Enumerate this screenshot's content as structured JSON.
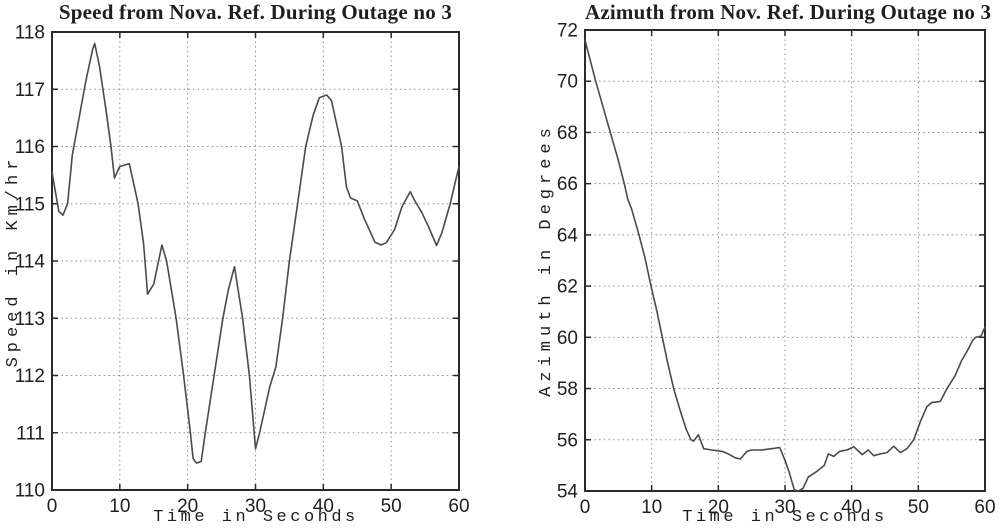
{
  "figure": {
    "background": "#ffffff"
  },
  "colors": {
    "line": "#4a4a4a",
    "grid": "#8e8e8e",
    "border": "#2a2a2a",
    "text": "#1f1f1f"
  },
  "chart_data": [
    {
      "type": "line",
      "title": "Speed from Nova. Ref. During Outage no 3",
      "xlabel": "Time in Seconds",
      "ylabel": "Speed in Km/hr",
      "xlim": [
        0,
        60
      ],
      "ylim": [
        110,
        118
      ],
      "xticks": [
        0,
        10,
        20,
        30,
        40,
        50,
        60
      ],
      "yticks": [
        110,
        111,
        112,
        113,
        114,
        115,
        116,
        117,
        118
      ],
      "grid": true,
      "legend": false,
      "x": [
        0,
        1,
        1.6,
        2.3,
        3,
        4,
        5,
        6,
        6.3,
        7,
        8,
        8.7,
        9.2,
        10,
        11.4,
        12.7,
        13.5,
        14.1,
        15,
        16.2,
        16.9,
        18.3,
        19.4,
        20.4,
        20.8,
        21.3,
        22,
        22.6,
        23.9,
        25.2,
        26,
        26.9,
        28.1,
        29.1,
        30,
        30.6,
        32.1,
        33,
        34,
        35,
        36.2,
        37.4,
        38.5,
        39.4,
        40.5,
        41.2,
        42.7,
        43.4,
        44,
        45,
        46,
        47.6,
        48.5,
        49.3,
        50.5,
        51.6,
        52.8,
        53.5,
        54.5,
        55.5,
        56.7,
        57.5,
        58.7,
        59.4,
        60
      ],
      "y": [
        115.55,
        114.87,
        114.8,
        115.0,
        115.85,
        116.5,
        117.15,
        117.7,
        117.8,
        117.4,
        116.6,
        116.0,
        115.45,
        115.65,
        115.7,
        115.0,
        114.3,
        113.42,
        113.6,
        114.28,
        114.0,
        113.0,
        112.0,
        111.0,
        110.55,
        110.47,
        110.5,
        111.0,
        112.0,
        113.0,
        113.5,
        113.9,
        113.0,
        112.0,
        110.72,
        111.0,
        111.8,
        112.15,
        113.0,
        114.0,
        115.0,
        116.0,
        116.55,
        116.85,
        116.9,
        116.8,
        116.0,
        115.3,
        115.1,
        115.05,
        114.75,
        114.33,
        114.28,
        114.32,
        114.55,
        114.95,
        115.21,
        115.05,
        114.85,
        114.6,
        114.27,
        114.5,
        115.0,
        115.35,
        115.65
      ]
    },
    {
      "type": "line",
      "title": "Azimuth from Nov. Ref. During Outage no 3",
      "xlabel": "Time in Seconds",
      "ylabel": "Azimuth in Degrees",
      "xlim": [
        0,
        60
      ],
      "ylim": [
        54,
        72
      ],
      "xticks": [
        0,
        10,
        20,
        30,
        40,
        50,
        60
      ],
      "yticks": [
        54,
        56,
        58,
        60,
        62,
        64,
        66,
        68,
        70,
        72
      ],
      "grid": true,
      "legend": false,
      "x": [
        0,
        1,
        1.6,
        2.7,
        3.8,
        4.9,
        5.9,
        6.4,
        7,
        8.1,
        9,
        9.9,
        10.8,
        11.6,
        12.4,
        13.3,
        14.2,
        15.2,
        15.9,
        16.3,
        17,
        17.8,
        19,
        20.5,
        21.5,
        22.5,
        23.3,
        24.3,
        25,
        26.5,
        28,
        29.2,
        30,
        30.6,
        31.4,
        32,
        32.7,
        33.5,
        34.7,
        35.9,
        36.5,
        37.3,
        38.2,
        39.3,
        40.3,
        41.6,
        42.5,
        43.3,
        44.3,
        45.3,
        46.3,
        47.3,
        48.3,
        49.3,
        50.3,
        51.3,
        52,
        53.3,
        54.3,
        55.5,
        56.5,
        57.3,
        58.2,
        58.6,
        59.4,
        60
      ],
      "y": [
        71.6,
        70.6,
        70.0,
        69.0,
        68.0,
        67.0,
        66.0,
        65.4,
        65.0,
        64.0,
        63.1,
        62.0,
        61.0,
        60.0,
        59.0,
        58.0,
        57.2,
        56.4,
        56.0,
        55.95,
        56.2,
        55.65,
        55.6,
        55.55,
        55.45,
        55.3,
        55.25,
        55.55,
        55.6,
        55.6,
        55.65,
        55.7,
        55.2,
        54.75,
        54.05,
        54.0,
        54.1,
        54.55,
        54.75,
        55.0,
        55.45,
        55.35,
        55.55,
        55.6,
        55.73,
        55.42,
        55.6,
        55.38,
        55.45,
        55.5,
        55.75,
        55.5,
        55.65,
        56.0,
        56.7,
        57.3,
        57.45,
        57.5,
        58.0,
        58.5,
        59.1,
        59.45,
        59.9,
        60.0,
        60.05,
        60.4
      ]
    }
  ]
}
